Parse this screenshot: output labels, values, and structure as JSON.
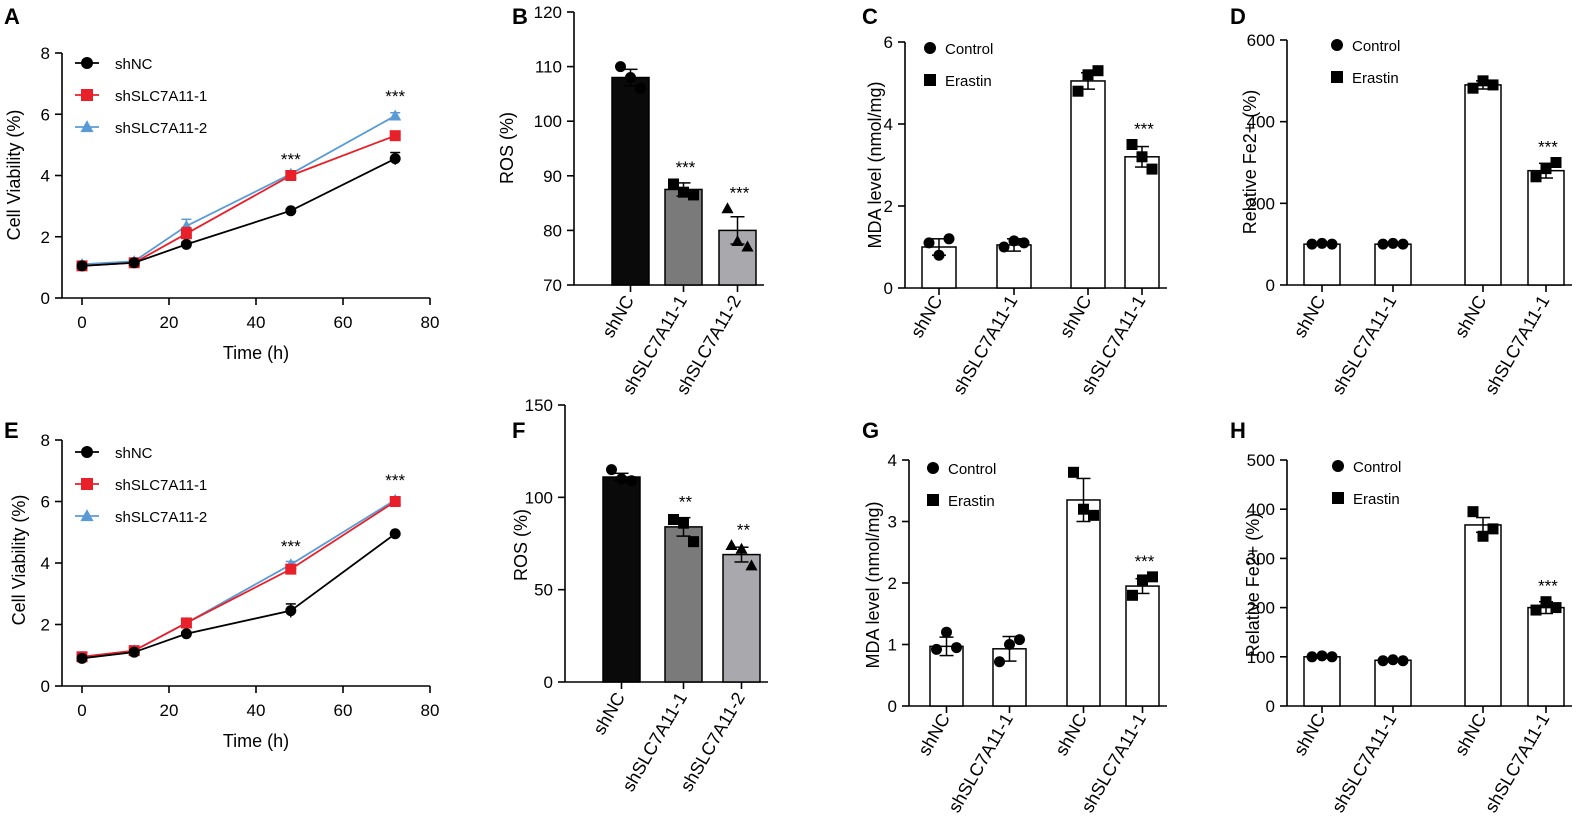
{
  "colors": {
    "black": "#000000",
    "red": "#e8202a",
    "blue": "#5b9bd5",
    "bar_dark": "#0a0a0a",
    "bar_mid": "#7a7a7a",
    "bar_light": "#a8a8ad",
    "bar_white": "#ffffff"
  },
  "chart_data": [
    {
      "panel": "A",
      "type": "line",
      "xlabel": "Time (h)",
      "ylabel": "Cell Viability (%)",
      "xlim": [
        0,
        80
      ],
      "ylim": [
        0,
        8
      ],
      "xticks": [
        0,
        20,
        40,
        60,
        80
      ],
      "yticks": [
        0,
        2,
        4,
        6,
        8
      ],
      "x": [
        0,
        12,
        24,
        48,
        72
      ],
      "series": [
        {
          "name": "shNC",
          "color": "#000000",
          "marker": "circle",
          "values": [
            1.05,
            1.15,
            1.75,
            2.85,
            4.55
          ],
          "errors": [
            0.08,
            0.06,
            0.08,
            0.06,
            0.2
          ]
        },
        {
          "name": "shSLC7A11-1",
          "color": "#e8202a",
          "marker": "square",
          "values": [
            1.05,
            1.15,
            2.1,
            4.0,
            5.3
          ],
          "errors": [
            0.08,
            0.06,
            0.2,
            0.1,
            0.1
          ]
        },
        {
          "name": "shSLC7A11-2",
          "color": "#5b9bd5",
          "marker": "triangle",
          "values": [
            1.1,
            1.2,
            2.35,
            4.05,
            5.95
          ],
          "errors": [
            0.08,
            0.06,
            0.22,
            0.1,
            0.1
          ]
        }
      ],
      "annotations": [
        {
          "x": 48,
          "text": "***",
          "y": 4.35
        },
        {
          "x": 72,
          "text": "***",
          "y": 6.4
        }
      ]
    },
    {
      "panel": "B",
      "type": "bar",
      "ylabel": "ROS (%)",
      "ylim": [
        70,
        120
      ],
      "yticks": [
        70,
        80,
        90,
        100,
        110,
        120
      ],
      "categories": [
        "shNC",
        "shSLC7A11-1",
        "shSLC7A11-2"
      ],
      "values": [
        108,
        87.5,
        80
      ],
      "errors": [
        1.5,
        1.2,
        2.5
      ],
      "fills": [
        "#0a0a0a",
        "#7a7a7a",
        "#a8a8ad"
      ],
      "markers": [
        "circle",
        "square",
        "triangle"
      ],
      "points": [
        [
          110,
          108,
          106
        ],
        [
          88.5,
          87,
          86.5
        ],
        [
          84,
          78,
          77
        ]
      ],
      "annotations": [
        "",
        "***",
        "***"
      ]
    },
    {
      "panel": "C",
      "type": "bar",
      "ylabel": "MDA level (nmol/mg)",
      "ylim": [
        0,
        6
      ],
      "yticks": [
        0,
        2,
        4,
        6
      ],
      "categories": [
        "shNC",
        "shSLC7A11-1",
        "shNC",
        "shSLC7A11-1"
      ],
      "values": [
        1.0,
        1.05,
        5.05,
        3.2
      ],
      "errors": [
        0.2,
        0.15,
        0.2,
        0.25
      ],
      "groups": [
        "Control",
        "Control",
        "Erastin",
        "Erastin"
      ],
      "points": [
        [
          1.1,
          0.8,
          1.2
        ],
        [
          1.0,
          1.15,
          1.1
        ],
        [
          4.8,
          5.2,
          5.3
        ],
        [
          3.5,
          3.2,
          2.9
        ]
      ],
      "legend": [
        "Control",
        "Erastin"
      ],
      "annotations": [
        "",
        "",
        "",
        "***"
      ]
    },
    {
      "panel": "D",
      "type": "bar",
      "ylabel": "Relative Fe2+ (%)",
      "ylim": [
        0,
        600
      ],
      "yticks": [
        0,
        200,
        400,
        600
      ],
      "categories": [
        "shNC",
        "shSLC7A11-1",
        "shNC",
        "shSLC7A11-1"
      ],
      "values": [
        100,
        100,
        490,
        280
      ],
      "errors": [
        2,
        2,
        10,
        18
      ],
      "groups": [
        "Control",
        "Control",
        "Erastin",
        "Erastin"
      ],
      "points": [
        [
          100,
          102,
          100
        ],
        [
          100,
          102,
          100
        ],
        [
          482,
          500,
          490
        ],
        [
          265,
          285,
          300
        ]
      ],
      "legend": [
        "Control",
        "Erastin"
      ],
      "annotations": [
        "",
        "",
        "",
        "***"
      ]
    },
    {
      "panel": "E",
      "type": "line",
      "xlabel": "Time (h)",
      "ylabel": "Cell Viability (%)",
      "xlim": [
        0,
        80
      ],
      "ylim": [
        0,
        8
      ],
      "xticks": [
        0,
        20,
        40,
        60,
        80
      ],
      "yticks": [
        0,
        2,
        4,
        6,
        8
      ],
      "x": [
        0,
        12,
        24,
        48,
        72
      ],
      "series": [
        {
          "name": "shNC",
          "color": "#000000",
          "marker": "circle",
          "values": [
            0.9,
            1.1,
            1.7,
            2.45,
            4.95
          ],
          "errors": [
            0.05,
            0.06,
            0.06,
            0.22,
            0.05
          ]
        },
        {
          "name": "shSLC7A11-1",
          "color": "#e8202a",
          "marker": "square",
          "values": [
            0.95,
            1.15,
            2.05,
            3.8,
            6.0
          ],
          "errors": [
            0.05,
            0.06,
            0.06,
            0.12,
            0.06
          ]
        },
        {
          "name": "shSLC7A11-2",
          "color": "#5b9bd5",
          "marker": "triangle",
          "values": [
            0.95,
            1.15,
            2.05,
            3.95,
            6.05
          ],
          "errors": [
            0.05,
            0.06,
            0.06,
            0.1,
            0.06
          ]
        }
      ],
      "annotations": [
        {
          "x": 48,
          "text": "***",
          "y": 4.35
        },
        {
          "x": 72,
          "text": "***",
          "y": 6.5
        }
      ]
    },
    {
      "panel": "F",
      "type": "bar",
      "ylabel": "ROS (%)",
      "ylim": [
        0,
        150
      ],
      "yticks": [
        0,
        50,
        100,
        150
      ],
      "categories": [
        "shNC",
        "shSLC7A11-1",
        "shSLC7A11-2"
      ],
      "values": [
        111,
        84,
        69
      ],
      "errors": [
        2,
        5,
        4
      ],
      "fills": [
        "#0a0a0a",
        "#7a7a7a",
        "#a8a8ad"
      ],
      "markers": [
        "circle",
        "square",
        "triangle"
      ],
      "points": [
        [
          115,
          110,
          109
        ],
        [
          88,
          86,
          76
        ],
        [
          74,
          72,
          63
        ]
      ],
      "annotations": [
        "",
        "**",
        "**"
      ]
    },
    {
      "panel": "G",
      "type": "bar",
      "ylabel": "MDA level (nmol/mg)",
      "ylim": [
        0,
        4
      ],
      "yticks": [
        0,
        1,
        2,
        3,
        4
      ],
      "categories": [
        "shNC",
        "shSLC7A11-1",
        "shNC",
        "shSLC7A11-1"
      ],
      "values": [
        0.97,
        0.93,
        3.35,
        1.95
      ],
      "errors": [
        0.15,
        0.2,
        0.35,
        0.12
      ],
      "groups": [
        "Control",
        "Control",
        "Erastin",
        "Erastin"
      ],
      "points": [
        [
          0.92,
          1.2,
          0.95
        ],
        [
          0.72,
          1.0,
          1.08
        ],
        [
          3.8,
          3.2,
          3.1
        ],
        [
          1.8,
          2.05,
          2.1
        ]
      ],
      "legend": [
        "Control",
        "Erastin"
      ],
      "annotations": [
        "",
        "",
        "",
        "***"
      ]
    },
    {
      "panel": "H",
      "type": "bar",
      "ylabel": "Relative Fe2+ (%)",
      "ylim": [
        0,
        500
      ],
      "yticks": [
        0,
        100,
        200,
        300,
        400,
        500
      ],
      "categories": [
        "shNC",
        "shSLC7A11-1",
        "shNC",
        "shSLC7A11-1"
      ],
      "values": [
        100,
        93,
        368,
        200
      ],
      "errors": [
        2,
        2,
        15,
        12
      ],
      "groups": [
        "Control",
        "Control",
        "Erastin",
        "Erastin"
      ],
      "points": [
        [
          100,
          102,
          100
        ],
        [
          92,
          94,
          92
        ],
        [
          395,
          345,
          360
        ],
        [
          195,
          212,
          200
        ]
      ],
      "legend": [
        "Control",
        "Erastin"
      ],
      "annotations": [
        "",
        "",
        "",
        "***"
      ]
    }
  ]
}
